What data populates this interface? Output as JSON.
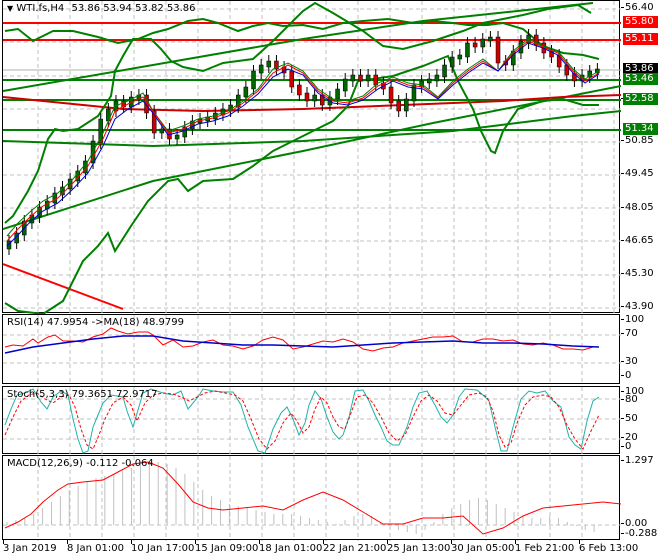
{
  "main_chart": {
    "symbol": "WTI.fs,H4",
    "ohlc": "53.86 53.94 53.82 53.86",
    "title_icon": "triangle-down-icon",
    "price_axis": [
      "56.40",
      "50.85",
      "49.45",
      "48.05",
      "46.65",
      "45.30",
      "43.90"
    ],
    "partial_axis_labels": [
      "52.25"
    ],
    "price_labels": [
      {
        "value": "55.80",
        "color": "#ff0000",
        "kind": "resistance"
      },
      {
        "value": "55.11",
        "color": "#ff0000",
        "kind": "resistance"
      },
      {
        "value": "53.86",
        "color": "#000000",
        "kind": "current-price"
      },
      {
        "value": "53.46",
        "color": "#008000",
        "kind": "support"
      },
      {
        "value": "52.58",
        "color": "#008000",
        "kind": "support"
      },
      {
        "value": "51.34",
        "color": "#008000",
        "kind": "support"
      }
    ]
  },
  "rsi": {
    "title": "RSI(14) 47.9954  ->MA(18) 48.9799",
    "axis": [
      "100",
      "70",
      "30",
      "0"
    ],
    "colors": {
      "rsi": "#ff0000",
      "ma": "#0000cc"
    }
  },
  "stoch": {
    "title": "Stoch(5,3,3) 79.3651 72.9717",
    "axis": [
      "100",
      "80",
      "50",
      "20",
      "0"
    ],
    "colors": {
      "main": "#20b2aa",
      "signal": "#ff0000"
    }
  },
  "macd": {
    "title": "MACD(12,26,9) -0.112 -0.064",
    "axis": [
      "1.297",
      "0.00",
      "-0.288"
    ],
    "colors": {
      "histogram": "#c0c0c0",
      "signal": "#ff0000"
    }
  },
  "time_axis": [
    "3 Jan 2019",
    "8 Jan 01:00",
    "10 Jan 17:00",
    "15 Jan 09:00",
    "18 Jan 01:00",
    "22 Jan 21:00",
    "25 Jan 13:00",
    "30 Jan 05:00",
    "1 Feb 21:00",
    "6 Feb 13:00"
  ],
  "colors": {
    "bull_candle": "#006400",
    "bear_candle": "#cc0000",
    "trendline_green": "#008000",
    "level_red": "#ff0000",
    "grid": "#c0c0c0"
  }
}
